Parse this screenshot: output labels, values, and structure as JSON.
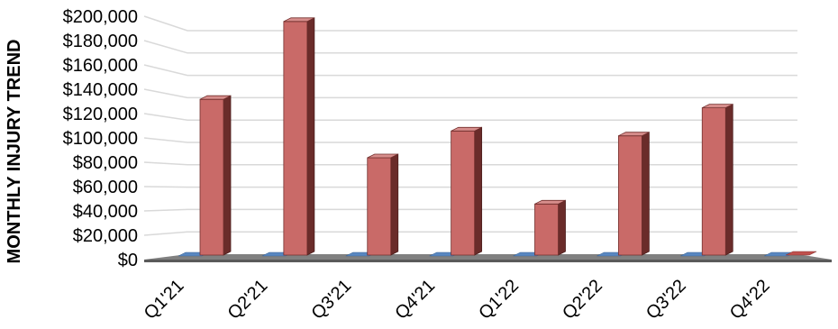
{
  "chart_data": {
    "type": "bar",
    "ylabel": "MONTHLY INJURY TREND",
    "categories": [
      "Q1'21",
      "Q2'21",
      "Q3'21",
      "Q4'21",
      "Q1'22",
      "Q2'22",
      "Q3'22",
      "Q4'22"
    ],
    "series": [
      {
        "color": "#4f81bd",
        "values": [
          0,
          0,
          0,
          0,
          0,
          0,
          0,
          0
        ]
      },
      {
        "color": "#c0504d",
        "values": [
          128000,
          192000,
          80000,
          102000,
          42000,
          98000,
          121000,
          0
        ]
      }
    ],
    "ylim": [
      0,
      200000
    ],
    "yticks": [
      "$0",
      "$20,000",
      "$40,000",
      "$60,000",
      "$80,000",
      "$100,000",
      "$120,000",
      "$140,000",
      "$160,000",
      "$180,000",
      "$200,000"
    ],
    "grid": true,
    "style": "3d-column"
  }
}
